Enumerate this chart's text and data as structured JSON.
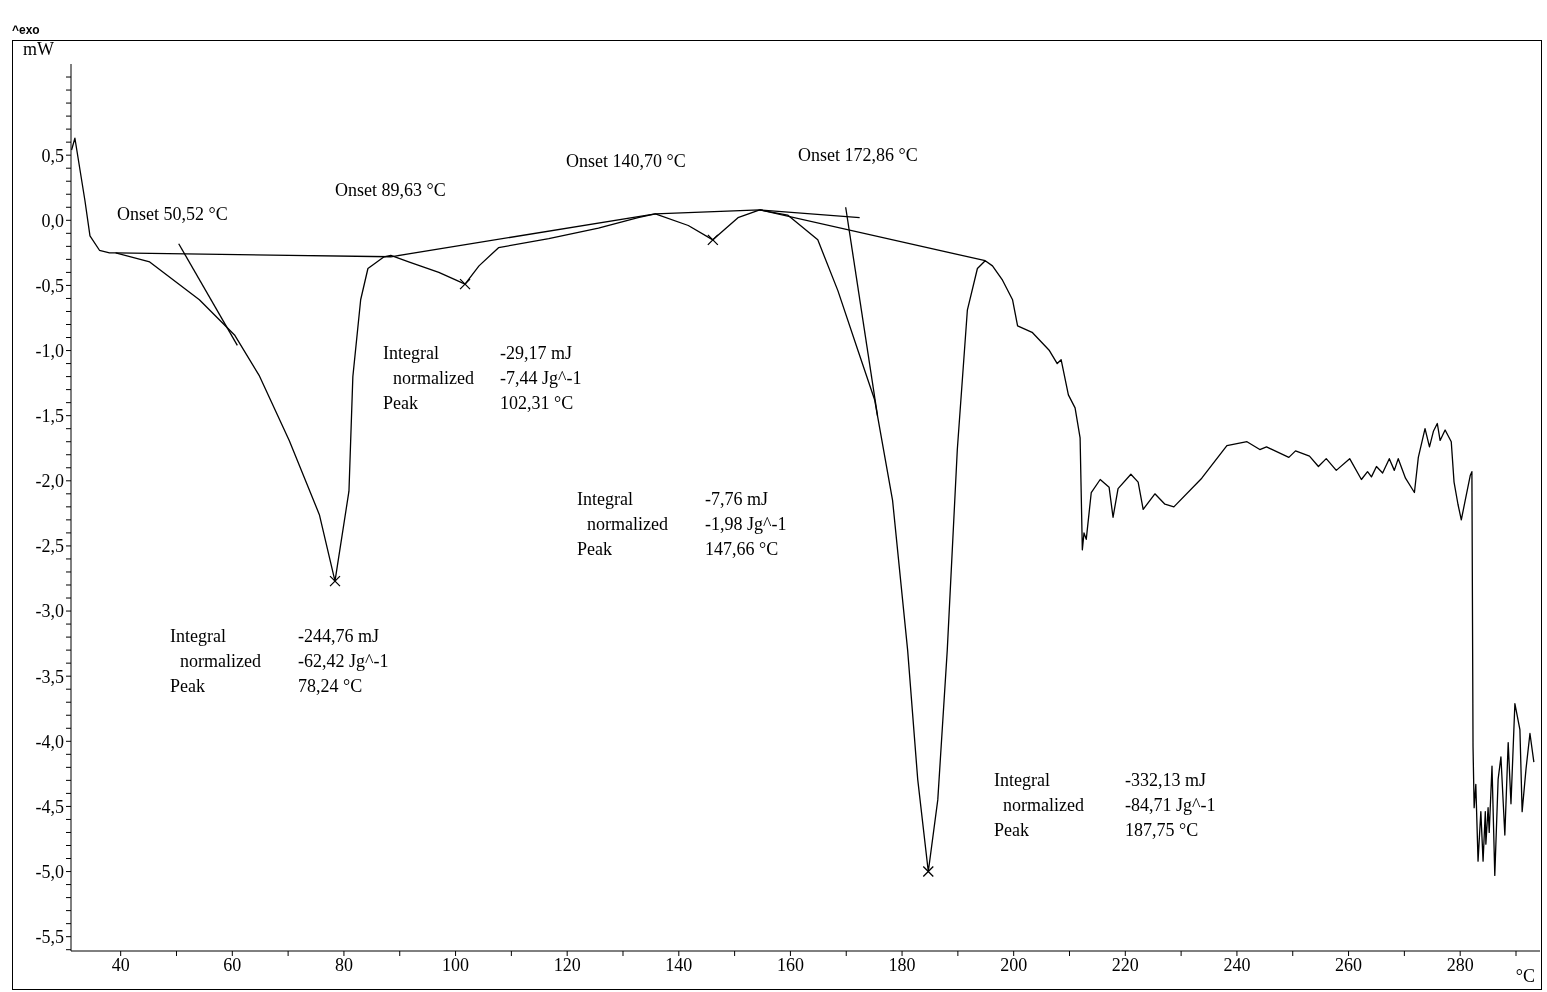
{
  "chart_data": {
    "type": "line",
    "xlabel": "°C",
    "ylabel": "mW",
    "xlim": [
      31.1,
      294.3
    ],
    "ylim": [
      -5.61,
      1.2
    ],
    "xticks": [
      40,
      {
        "value": 50,
        "label": null
      },
      60,
      {
        "value": 70,
        "label": null
      },
      80,
      {
        "value": 90,
        "label": null
      },
      100,
      {
        "value": 110,
        "label": null
      },
      120,
      {
        "value": 130,
        "label": null
      },
      140,
      {
        "value": 150,
        "label": null
      },
      160,
      {
        "value": 170,
        "label": null
      },
      180,
      {
        "value": 190,
        "label": null
      },
      200,
      {
        "value": 210,
        "label": null
      },
      220,
      {
        "value": 230,
        "label": null
      },
      240,
      {
        "value": 250,
        "label": null
      },
      260,
      {
        "value": 270,
        "label": null
      },
      280,
      {
        "value": 290,
        "label": null
      }
    ],
    "yticks": [
      {
        "value": -5.6,
        "label": null
      },
      {
        "value": -5.5,
        "label": "-5,5"
      },
      {
        "value": -5.4,
        "label": null
      },
      {
        "value": -5.3,
        "label": null
      },
      {
        "value": -5.2,
        "label": null
      },
      {
        "value": -5.1,
        "label": null
      },
      {
        "value": -5,
        "label": "-5,0"
      },
      {
        "value": -4.9,
        "label": null
      },
      {
        "value": -4.8,
        "label": null
      },
      {
        "value": -4.7,
        "label": null
      },
      {
        "value": -4.6,
        "label": null
      },
      {
        "value": -4.5,
        "label": "-4,5"
      },
      {
        "value": -4.4,
        "label": null
      },
      {
        "value": -4.3,
        "label": null
      },
      {
        "value": -4.2,
        "label": null
      },
      {
        "value": -4.1,
        "label": null
      },
      {
        "value": -4,
        "label": "-4,0"
      },
      {
        "value": -3.9,
        "label": null
      },
      {
        "value": -3.8,
        "label": null
      },
      {
        "value": -3.7,
        "label": null
      },
      {
        "value": -3.6,
        "label": null
      },
      {
        "value": -3.5,
        "label": "-3,5"
      },
      {
        "value": -3.4,
        "label": null
      },
      {
        "value": -3.3,
        "label": null
      },
      {
        "value": -3.2,
        "label": null
      },
      {
        "value": -3.1,
        "label": null
      },
      {
        "value": -3,
        "label": "-3,0"
      },
      {
        "value": -2.9,
        "label": null
      },
      {
        "value": -2.8,
        "label": null
      },
      {
        "value": -2.7,
        "label": null
      },
      {
        "value": -2.6,
        "label": null
      },
      {
        "value": -2.5,
        "label": "-2,5"
      },
      {
        "value": -2.4,
        "label": null
      },
      {
        "value": -2.3,
        "label": null
      },
      {
        "value": -2.2,
        "label": null
      },
      {
        "value": -2.1,
        "label": null
      },
      {
        "value": -2,
        "label": "-2,0"
      },
      {
        "value": -1.9,
        "label": null
      },
      {
        "value": -1.8,
        "label": null
      },
      {
        "value": -1.7,
        "label": null
      },
      {
        "value": -1.6,
        "label": null
      },
      {
        "value": -1.5,
        "label": "-1,5"
      },
      {
        "value": -1.4,
        "label": null
      },
      {
        "value": -1.3,
        "label": null
      },
      {
        "value": -1.2,
        "label": null
      },
      {
        "value": -1.1,
        "label": null
      },
      {
        "value": -1,
        "label": "-1,0"
      },
      {
        "value": -0.9,
        "label": null
      },
      {
        "value": -0.8,
        "label": null
      },
      {
        "value": -0.7,
        "label": null
      },
      {
        "value": -0.6,
        "label": null
      },
      {
        "value": -0.5,
        "label": "-0,5"
      },
      {
        "value": -0.4,
        "label": null
      },
      {
        "value": -0.3,
        "label": null
      },
      {
        "value": -0.2,
        "label": null
      },
      {
        "value": -0.1,
        "label": null
      },
      {
        "value": 0,
        "label": "0,0"
      },
      {
        "value": 0.1,
        "label": null
      },
      {
        "value": 0.2,
        "label": null
      },
      {
        "value": 0.3,
        "label": null
      },
      {
        "value": 0.4,
        "label": null
      },
      {
        "value": 0.5,
        "label": "0,5"
      },
      {
        "value": 0.6,
        "label": null
      },
      {
        "value": 0.7,
        "label": null
      },
      {
        "value": 0.8,
        "label": null
      },
      {
        "value": 0.9,
        "label": null
      },
      {
        "value": 1.0,
        "label": null
      },
      {
        "value": 1.1,
        "label": null
      }
    ],
    "series": [
      {
        "color": "#000000",
        "line_style": "solid",
        "x": [
          31.2,
          31.8,
          33.6,
          34.5,
          36.2,
          38.0,
          39.1,
          45.2,
          54.1,
          60.4,
          64.8,
          70.2,
          75.6,
          78.4,
          80.9,
          81.6,
          83.0,
          84.3,
          87.2,
          88.4,
          91.6,
          97.0,
          101.7,
          104.2,
          107.7,
          116.7,
          125.6,
          132.7,
          135.8,
          141.7,
          146.1,
          150.6,
          154.5,
          159.5,
          164.9,
          168.5,
          172.1,
          175.1,
          178.3,
          181.0,
          182.8,
          184.7,
          186.4,
          188.1,
          189.9,
          191.7,
          193.5,
          194.9,
          196.2,
          198.0,
          199.8,
          200.7,
          203.3,
          206.4,
          207.8,
          208.5,
          209.8,
          211.0,
          211.9,
          212.3,
          212.6,
          213.0,
          213.9,
          215.5,
          217.1,
          217.8,
          218.7,
          221.0,
          222.3,
          223.2,
          225.3,
          227.1,
          228.7,
          233.7,
          238.2,
          241.8,
          244.1,
          245.3,
          249.3,
          250.5,
          253.0,
          254.6,
          256.0,
          257.8,
          260.2,
          262.3,
          263.4,
          264.1,
          265.0,
          266.1,
          267.3,
          268.2,
          268.9,
          270.2,
          271.8,
          272.5,
          273.7,
          274.5,
          275.2,
          275.9,
          276.4,
          277.3,
          278.4,
          278.9,
          279.6,
          280.2,
          280.9,
          281.8,
          282.1,
          282.3,
          282.5,
          282.8,
          283.2,
          283.7,
          284.1,
          284.5,
          284.6,
          285.0,
          285.2,
          285.7,
          286.2,
          286.8,
          287.3,
          288.0,
          288.6,
          289.1,
          289.8,
          290.7,
          291.1,
          291.8,
          292.5,
          293.2
        ],
        "values": [
          0.54,
          0.63,
          0.15,
          -0.12,
          -0.23,
          -0.25,
          -0.25,
          -0.32,
          -0.61,
          -0.88,
          -1.19,
          -1.69,
          -2.26,
          -2.77,
          -2.08,
          -1.2,
          -0.61,
          -0.37,
          -0.28,
          -0.27,
          -0.32,
          -0.4,
          -0.49,
          -0.35,
          -0.21,
          -0.14,
          -0.06,
          0.02,
          0.05,
          -0.04,
          -0.15,
          0.02,
          0.08,
          0.04,
          -0.15,
          -0.54,
          -1.0,
          -1.38,
          -2.15,
          -3.3,
          -4.29,
          -5.0,
          -4.45,
          -3.3,
          -1.76,
          -0.69,
          -0.37,
          -0.31,
          -0.35,
          -0.46,
          -0.61,
          -0.81,
          -0.86,
          -1.0,
          -1.1,
          -1.07,
          -1.34,
          -1.44,
          -1.67,
          -2.53,
          -2.4,
          -2.45,
          -2.09,
          -1.99,
          -2.05,
          -2.28,
          -2.06,
          -1.95,
          -2.01,
          -2.22,
          -2.1,
          -2.18,
          -2.2,
          -1.98,
          -1.73,
          -1.7,
          -1.76,
          -1.74,
          -1.82,
          -1.77,
          -1.81,
          -1.89,
          -1.83,
          -1.92,
          -1.83,
          -1.99,
          -1.93,
          -1.97,
          -1.89,
          -1.94,
          -1.83,
          -1.92,
          -1.83,
          -1.98,
          -2.09,
          -1.82,
          -1.6,
          -1.74,
          -1.62,
          -1.56,
          -1.69,
          -1.61,
          -1.7,
          -2.01,
          -2.18,
          -2.3,
          -2.15,
          -1.96,
          -1.93,
          -4.04,
          -4.51,
          -4.33,
          -4.92,
          -4.54,
          -4.92,
          -4.54,
          -4.79,
          -4.51,
          -4.7,
          -4.19,
          -5.03,
          -4.29,
          -4.12,
          -4.72,
          -4.01,
          -4.48,
          -3.71,
          -3.91,
          -4.54,
          -4.21,
          -3.94,
          -4.16
        ]
      },
      {
        "color": "#000000",
        "line_style": "solid",
        "x": [
          39.1,
          88.4,
          135.8,
          154.5,
          194.9
        ],
        "values": [
          -0.25,
          -0.28,
          0.05,
          0.08,
          -0.31
        ]
      },
      {
        "color": "#000000",
        "line_style": "solid",
        "x": [
          50.4,
          60.9
        ],
        "values": [
          -0.18,
          -0.96
        ]
      },
      {
        "color": "#000000",
        "line_style": "solid",
        "x": [
          154.5,
          172.4
        ],
        "values": [
          0.08,
          0.02
        ]
      },
      {
        "color": "#000000",
        "line_style": "solid",
        "x": [
          169.9,
          175.6
        ],
        "values": [
          0.1,
          -1.5
        ]
      },
      {
        "type": "scatter",
        "color": "#000000",
        "marker": "cross",
        "x": [
          78.4,
          101.7,
          146.1,
          184.7
        ],
        "values": [
          -2.77,
          -0.49,
          -0.15,
          -5.0
        ]
      }
    ],
    "annotations": [
      "^exo",
      "Onset 50,52 °C",
      "Onset 89,63 °C",
      "Onset 140,70 °C",
      "Onset 172,86 °C",
      "Integral",
      "-244,76 mJ",
      "normalized",
      "-62,42 Jg^-1",
      "Peak",
      "78,24 °C",
      "Integral",
      "-29,17 mJ",
      "normalized",
      "-7,44 Jg^-1",
      "Peak",
      "102,31 °C",
      "Integral",
      "-7,76 mJ",
      "normalized",
      "-1,98 Jg^-1",
      "Peak",
      "147,66 °C",
      "Integral",
      "-332,13 mJ",
      "normalized",
      "-84,71 Jg^-1",
      "Peak",
      "187,75 °C"
    ]
  }
}
